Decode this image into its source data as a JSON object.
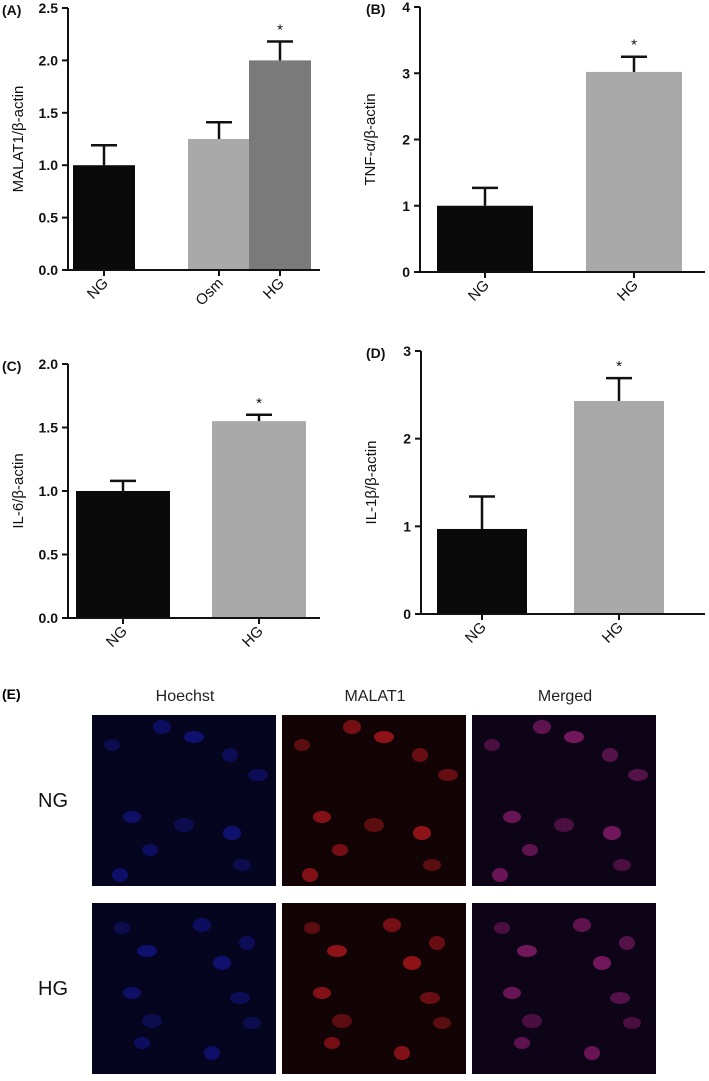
{
  "chart_data": [
    {
      "panel": "(A)",
      "type": "bar",
      "ylabel": "MALAT1/β-actin",
      "ylim": [
        0,
        2.5
      ],
      "yticks": [
        "0.0",
        "0.5",
        "1.0",
        "1.5",
        "2.0",
        "2.5"
      ],
      "categories": [
        "NG",
        "Osm",
        "HG"
      ],
      "values": [
        1.0,
        1.25,
        2.0
      ],
      "errors": [
        0.19,
        0.16,
        0.18
      ],
      "significance": [
        "",
        "",
        "*"
      ],
      "bar_colors": [
        "#0a0a0a",
        "#a9a9a9",
        "#7a7a7a"
      ]
    },
    {
      "panel": "(B)",
      "type": "bar",
      "ylabel": "TNF-α/β-actin",
      "ylim": [
        0,
        4
      ],
      "yticks": [
        "0",
        "1",
        "2",
        "3",
        "4"
      ],
      "categories": [
        "NG",
        "HG"
      ],
      "values": [
        1.0,
        3.02
      ],
      "errors": [
        0.27,
        0.23
      ],
      "significance": [
        "",
        "*"
      ],
      "bar_colors": [
        "#0a0a0a",
        "#a9a9a9"
      ]
    },
    {
      "panel": "(C)",
      "type": "bar",
      "ylabel": "IL-6/β-actin",
      "ylim": [
        0,
        2.0
      ],
      "yticks": [
        "0.0",
        "0.5",
        "1.0",
        "1.5",
        "2.0"
      ],
      "categories": [
        "NG",
        "HG"
      ],
      "values": [
        1.0,
        1.55
      ],
      "errors": [
        0.08,
        0.05
      ],
      "significance": [
        "",
        "*"
      ],
      "bar_colors": [
        "#0a0a0a",
        "#a9a9a9"
      ]
    },
    {
      "panel": "(D)",
      "type": "bar",
      "ylabel": "IL-1β/β-actin",
      "ylim": [
        0,
        3
      ],
      "yticks": [
        "0",
        "1",
        "2",
        "3"
      ],
      "categories": [
        "NG",
        "HG"
      ],
      "values": [
        0.97,
        2.43
      ],
      "errors": [
        0.37,
        0.26
      ],
      "significance": [
        "",
        "*"
      ],
      "bar_colors": [
        "#0a0a0a",
        "#a9a9a9"
      ]
    }
  ],
  "microscopy": {
    "panel": "(E)",
    "columns": [
      "Hoechst",
      "MALAT1",
      "Merged"
    ],
    "rows": [
      "NG",
      "HG"
    ]
  }
}
